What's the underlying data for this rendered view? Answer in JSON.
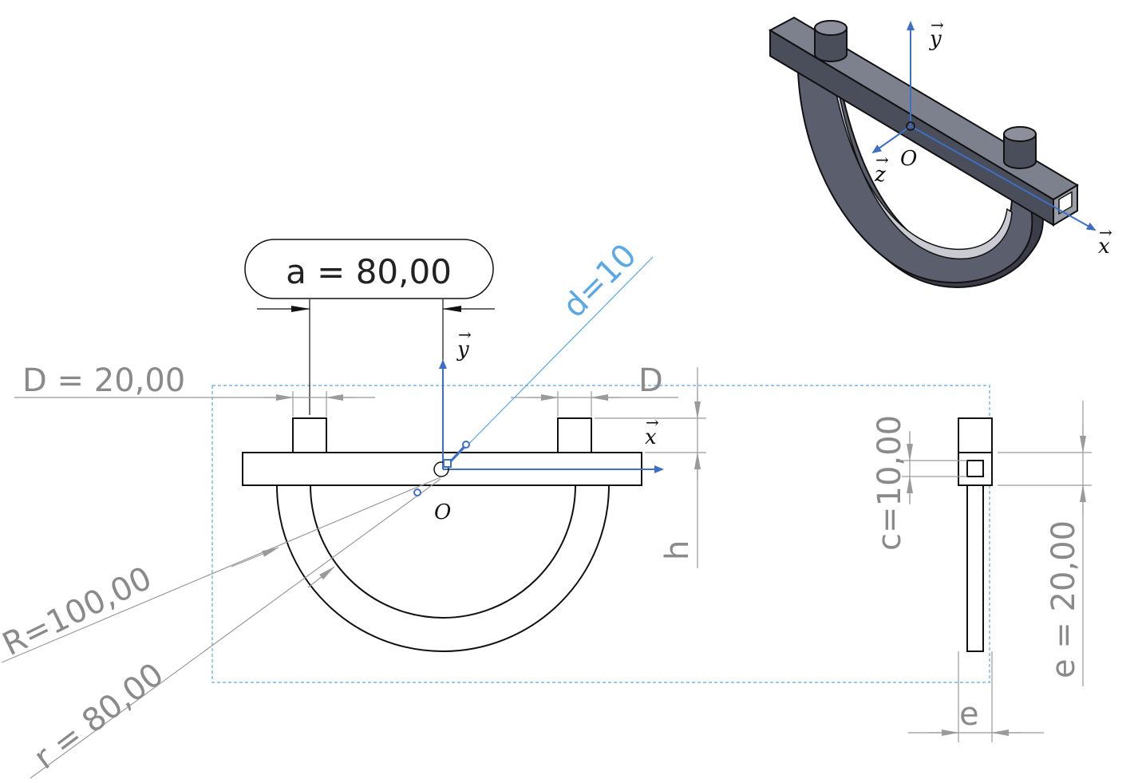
{
  "labels": {
    "a": "a = 80,00",
    "D_value": "D = 20,00",
    "D_right": "D",
    "d": "d=10",
    "h": "h",
    "c": "c=10,00",
    "e_value": "e = 20,00",
    "e_bottom": "e",
    "R": "R=100,00",
    "r": "r = 80,00"
  },
  "axes": {
    "y": "y",
    "x": "x",
    "z": "z",
    "origin": "O"
  },
  "colors": {
    "blue_axes": "#3f6fc4",
    "light_blue_dim": "#5aa8e6",
    "dimension_gray": "#8a8a8a",
    "part_dark": "#4a4d5a"
  }
}
